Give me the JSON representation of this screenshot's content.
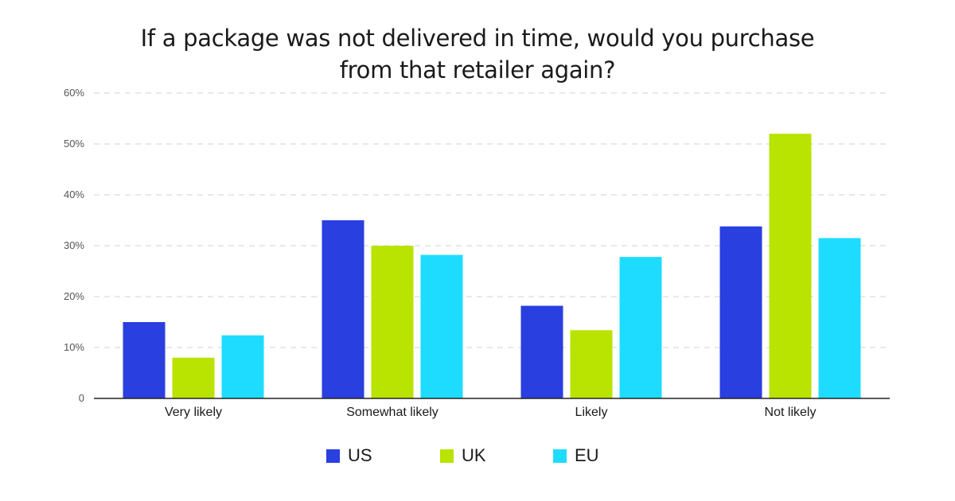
{
  "chart_data": {
    "type": "bar",
    "title": "If a package was not delivered in time, would you purchase\nfrom that retailer again?",
    "categories": [
      "Very likely",
      "Somewhat likely",
      "Likely",
      "Not likely"
    ],
    "series": [
      {
        "name": "US",
        "color": "#2a3fe0",
        "values": [
          15,
          35,
          18.2,
          33.8
        ]
      },
      {
        "name": "UK",
        "color": "#b9e300",
        "values": [
          8,
          30,
          13.4,
          52
        ]
      },
      {
        "name": "EU",
        "color": "#1edcff",
        "values": [
          12.4,
          28.2,
          27.8,
          31.5
        ]
      }
    ],
    "yticks": [
      "0",
      "10%",
      "20%",
      "30%",
      "40%",
      "50%",
      "60%"
    ],
    "ylim": [
      0,
      60
    ],
    "grid": true,
    "legend_position": "bottom"
  }
}
